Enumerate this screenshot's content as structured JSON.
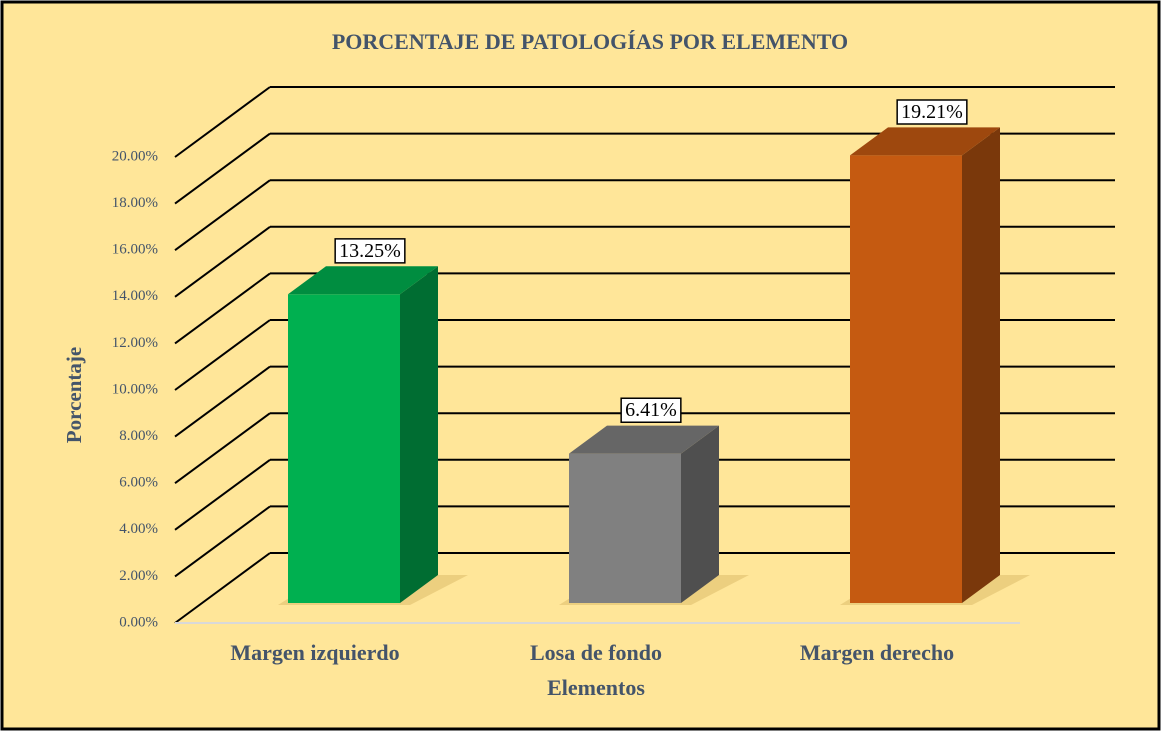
{
  "chart_data": {
    "type": "bar3d",
    "title": "PORCENTAJE DE PATOLOGÍAS POR ELEMENTO",
    "x_label": "Elementos",
    "y_label": "Porcentaje",
    "categories": [
      "Margen izquierdo",
      "Losa de fondo",
      "Margen derecho"
    ],
    "values": [
      13.25,
      6.41,
      19.21
    ],
    "value_labels": [
      "13.25%",
      "6.41%",
      "19.21%"
    ],
    "colors": [
      "#00b050",
      "#808080",
      "#c55a11"
    ],
    "ylim": [
      0,
      20
    ],
    "yticks": [
      {
        "value": 0,
        "label": "0.00%"
      },
      {
        "value": 2,
        "label": "2.00%"
      },
      {
        "value": 4,
        "label": "4.00%"
      },
      {
        "value": 6,
        "label": "6.00%"
      },
      {
        "value": 8,
        "label": "8.00%"
      },
      {
        "value": 10,
        "label": "10.00%"
      },
      {
        "value": 12,
        "label": "12.00%"
      },
      {
        "value": 14,
        "label": "14.00%"
      },
      {
        "value": 16,
        "label": "16.00%"
      },
      {
        "value": 18,
        "label": "18.00%"
      },
      {
        "value": 20,
        "label": "20.00%"
      }
    ],
    "grid": true
  }
}
